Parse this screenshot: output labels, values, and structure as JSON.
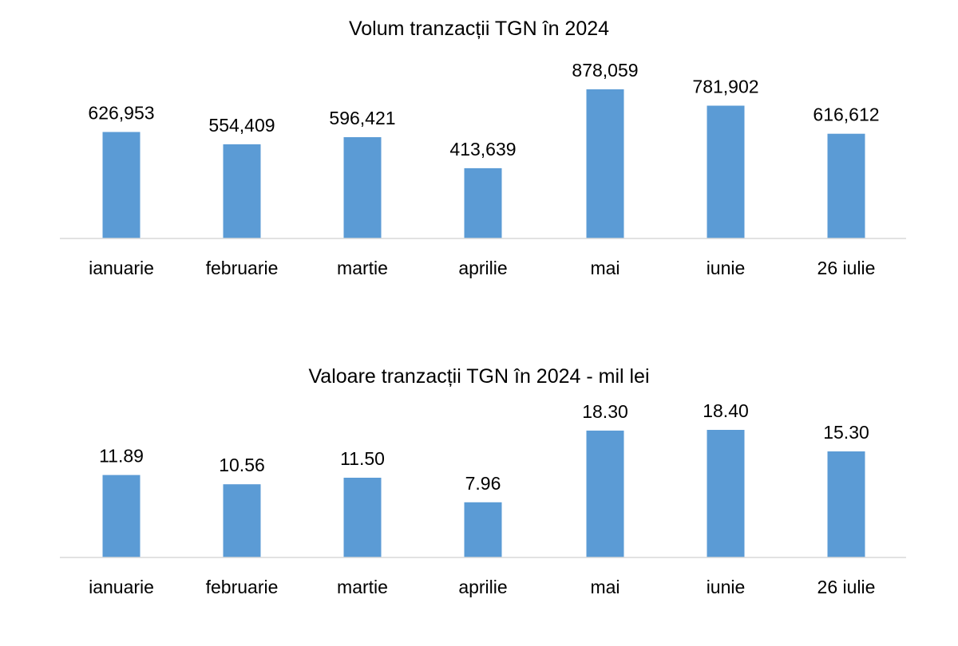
{
  "colors": {
    "bar": "#5B9BD5",
    "axis": "#D9D9D9",
    "text": "#000000"
  },
  "chart_data": [
    {
      "type": "bar",
      "title": "Volum tranzacții TGN în 2024",
      "categories": [
        "ianuarie",
        "februarie",
        "martie",
        "aprilie",
        "mai",
        "iunie",
        "26 iulie"
      ],
      "values": [
        626953,
        554409,
        596421,
        413639,
        878059,
        781902,
        616612
      ],
      "data_labels": [
        "626,953",
        "554,409",
        "596,421",
        "413,639",
        "878,059",
        "781,902",
        "616,612"
      ],
      "ylim": [
        0,
        878059
      ],
      "grid": false,
      "legend": "none"
    },
    {
      "type": "bar",
      "title": "Valoare tranzacții TGN în 2024 - mil lei",
      "categories": [
        "ianuarie",
        "februarie",
        "martie",
        "aprilie",
        "mai",
        "iunie",
        "26 iulie"
      ],
      "values": [
        11.89,
        10.56,
        11.5,
        7.96,
        18.3,
        18.4,
        15.3
      ],
      "data_labels": [
        "11.89",
        "10.56",
        "11.50",
        "7.96",
        "18.30",
        "18.40",
        "15.30"
      ],
      "ylim": [
        0,
        18.4
      ],
      "grid": false,
      "legend": "none"
    }
  ]
}
